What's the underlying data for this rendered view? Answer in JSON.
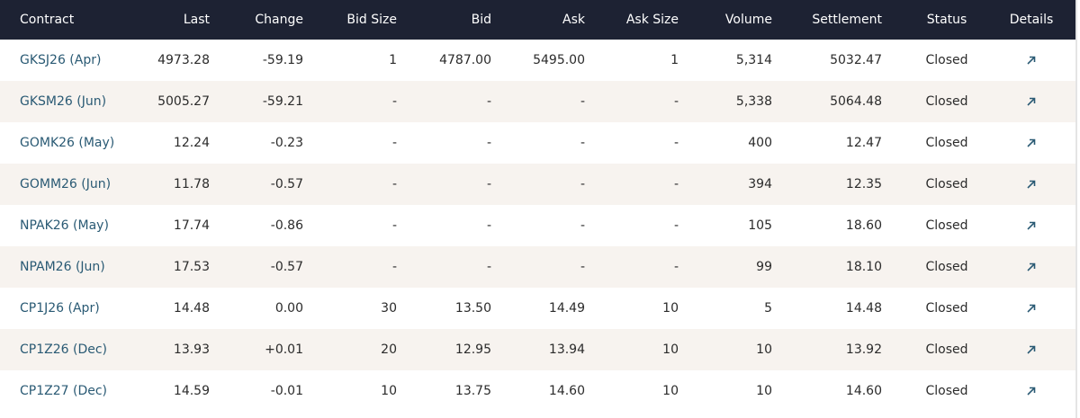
{
  "table": {
    "columns": [
      "Contract",
      "Last",
      "Change",
      "Bid Size",
      "Bid",
      "Ask",
      "Ask Size",
      "Volume",
      "Settlement",
      "Status",
      "Details"
    ],
    "rows": [
      [
        "GKSJ26 (Apr)",
        "4973.28",
        "-59.19",
        "1",
        "4787.00",
        "5495.00",
        "1",
        "5,314",
        "5032.47",
        "Closed"
      ],
      [
        "GKSM26 (Jun)",
        "5005.27",
        "-59.21",
        "-",
        "-",
        "-",
        "-",
        "5,338",
        "5064.48",
        "Closed"
      ],
      [
        "GOMK26 (May)",
        "12.24",
        "-0.23",
        "-",
        "-",
        "-",
        "-",
        "400",
        "12.47",
        "Closed"
      ],
      [
        "GOMM26 (Jun)",
        "11.78",
        "-0.57",
        "-",
        "-",
        "-",
        "-",
        "394",
        "12.35",
        "Closed"
      ],
      [
        "NPAK26 (May)",
        "17.74",
        "-0.86",
        "-",
        "-",
        "-",
        "-",
        "105",
        "18.60",
        "Closed"
      ],
      [
        "NPAM26 (Jun)",
        "17.53",
        "-0.57",
        "-",
        "-",
        "-",
        "-",
        "99",
        "18.10",
        "Closed"
      ],
      [
        "CP1J26 (Apr)",
        "14.48",
        "0.00",
        "30",
        "13.50",
        "14.49",
        "10",
        "5",
        "14.48",
        "Closed"
      ],
      [
        "CP1Z26 (Dec)",
        "13.93",
        "+0.01",
        "20",
        "12.95",
        "13.94",
        "10",
        "10",
        "13.92",
        "Closed"
      ],
      [
        "CP1Z27 (Dec)",
        "14.59",
        "-0.01",
        "10",
        "13.75",
        "14.60",
        "10",
        "10",
        "14.60",
        "Closed"
      ]
    ]
  }
}
